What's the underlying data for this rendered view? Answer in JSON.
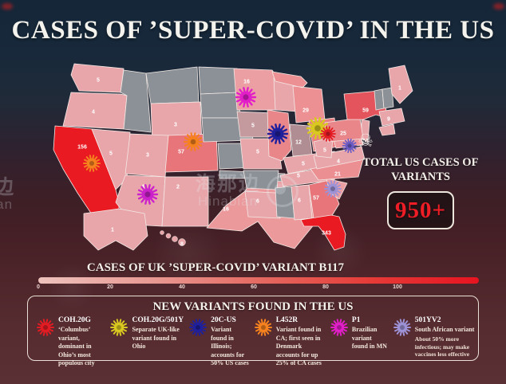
{
  "title": "CASES OF ’SUPER-COVID’ IN THE US",
  "watermark": {
    "cn": "海那边",
    "en": "Hinabian"
  },
  "total": {
    "line1": "TOTAL US CASES OF",
    "line2": "VARIANTS",
    "value": "950+",
    "value_color": "#ef1d25"
  },
  "scale": {
    "title": "CASES OF UK ’SUPER-COVID’ VARIANT B117",
    "ticks": [
      "0",
      "20",
      "40",
      "60",
      "80",
      "100"
    ],
    "gradient_start": "#eec2bd",
    "gradient_end": "#e71420"
  },
  "legend": {
    "title": "NEW VARIANTS FOUND IN THE US",
    "items": [
      {
        "name": "COH.20G",
        "color": "#e31c23",
        "desc": "‘Columbus’ variant, dominant in Ohio’s most populous city",
        "desc2": ""
      },
      {
        "name": "COH.20G/501Y",
        "color": "#d9c81f",
        "desc": "Separate UK-like variant found in Ohio",
        "desc2": ""
      },
      {
        "name": "20C-US",
        "color": "#20209d",
        "desc": "Variant found in Illinois; accounts for 50% US cases",
        "desc2": ""
      },
      {
        "name": "L452R",
        "color": "#f5821f",
        "desc": "Variant found in CA; first seen in Denmark accounts for up 25% of CA cases",
        "desc2": ""
      },
      {
        "name": "P1",
        "color": "#e21ec9",
        "desc": "Brazilian variant found in MN",
        "desc2": ""
      },
      {
        "name": "501YV2",
        "color": "#9d92d6",
        "desc": "South African variant",
        "desc2": "About 50% more infectious; may make vaccines less effective"
      }
    ]
  },
  "map": {
    "icons": [
      {
        "id": "ca-l452r",
        "variant": "L452R",
        "color": "#f5821f"
      },
      {
        "id": "co-l452r",
        "variant": "L452R",
        "color": "#f5821f"
      },
      {
        "id": "az-p1",
        "variant": "P1",
        "color": "#cb22cb"
      },
      {
        "id": "mn-p1",
        "variant": "P1",
        "color": "#e21ec9"
      },
      {
        "id": "il-20cus",
        "variant": "20C-US",
        "color": "#20209d"
      },
      {
        "id": "oh-coh20g501y",
        "variant": "COH.20G/501Y",
        "color": "#d9c81f"
      },
      {
        "id": "oh-coh20g",
        "variant": "COH.20G",
        "color": "#e31c23"
      },
      {
        "id": "md-501yv2",
        "variant": "501YV2",
        "color": "#6a5bc4"
      },
      {
        "id": "sc-501yv2",
        "variant": "501YV2",
        "color": "#9d92d6"
      }
    ],
    "skull": {
      "symbol": "☠",
      "meaning": "deaths marker near New Jersey / New York coast"
    }
  },
  "chart_data": {
    "type": "choropleth_map",
    "region": "United States",
    "title": "CASES OF UK ’SUPER-COVID’ VARIANT B117",
    "total_label": "TOTAL US CASES OF VARIANTS",
    "total_value": "950+",
    "scale_range": [
      0,
      100
    ],
    "states": [
      {
        "id": "WA",
        "name": "Washington",
        "value": 5,
        "fill": "#e9a6aa"
      },
      {
        "id": "OR",
        "name": "Oregon",
        "value": 4,
        "fill": "#e9a6aa"
      },
      {
        "id": "CA",
        "name": "California",
        "value": 156,
        "fill": "#ea1a22"
      },
      {
        "id": "NV",
        "name": "Nevada",
        "value": 5,
        "fill": "#e9a6aa"
      },
      {
        "id": "ID",
        "name": "Idaho",
        "value": null,
        "fill": "#8b9196"
      },
      {
        "id": "MT",
        "name": "Montana",
        "value": null,
        "fill": "#8b9196"
      },
      {
        "id": "WY",
        "name": "Wyoming",
        "value": 3,
        "fill": "#e9a6aa"
      },
      {
        "id": "UT",
        "name": "Utah",
        "value": 3,
        "fill": "#e9a6aa"
      },
      {
        "id": "CO",
        "name": "Colorado",
        "value": 57,
        "fill": "#e7757a"
      },
      {
        "id": "AZ",
        "name": "Arizona",
        "value": 4,
        "fill": "#e9a6aa"
      },
      {
        "id": "NM",
        "name": "New Mexico",
        "value": 2,
        "fill": "#e9a6aa"
      },
      {
        "id": "ND",
        "name": "North Dakota",
        "value": null,
        "fill": "#8b9196"
      },
      {
        "id": "SD",
        "name": "South Dakota",
        "value": null,
        "fill": "#8b9196"
      },
      {
        "id": "NE",
        "name": "Nebraska",
        "value": null,
        "fill": "#8b9196"
      },
      {
        "id": "KS",
        "name": "Kansas",
        "value": null,
        "fill": "#8b9196"
      },
      {
        "id": "OK",
        "name": "Oklahoma",
        "value": null,
        "fill": "#8b9196"
      },
      {
        "id": "TX",
        "name": "Texas",
        "value": 16,
        "fill": "#ec999c"
      },
      {
        "id": "MN",
        "name": "Minnesota",
        "value": 16,
        "fill": "#eb9fa3"
      },
      {
        "id": "IA",
        "name": "Iowa",
        "value": 5,
        "fill": "#c49a9e"
      },
      {
        "id": "MO",
        "name": "Missouri",
        "value": 5,
        "fill": "#e9a6aa"
      },
      {
        "id": "AR",
        "name": "Arkansas",
        "value": null,
        "fill": "#8b9196"
      },
      {
        "id": "LA",
        "name": "Louisiana",
        "value": 6,
        "fill": "#e9a6aa"
      },
      {
        "id": "WI",
        "name": "Wisconsin",
        "value": null,
        "fill": "#e9a6aa"
      },
      {
        "id": "IL",
        "name": "Illinois",
        "value": null,
        "fill": "#e9868a"
      },
      {
        "id": "MI",
        "name": "Michigan",
        "value": 29,
        "fill": "#ec9093"
      },
      {
        "id": "IN",
        "name": "Indiana",
        "value": 12,
        "fill": "#b08d92"
      },
      {
        "id": "OH",
        "name": "Ohio",
        "value": null,
        "fill": "#e87f83"
      },
      {
        "id": "KY",
        "name": "Kentucky",
        "value": 5,
        "fill": "#e9a6aa"
      },
      {
        "id": "TN",
        "name": "Tennessee",
        "value": 5,
        "fill": "#e9a6aa"
      },
      {
        "id": "MS",
        "name": "Mississippi",
        "value": null,
        "fill": "#8b9196"
      },
      {
        "id": "AL",
        "name": "Alabama",
        "value": 6,
        "fill": "#e9a6aa"
      },
      {
        "id": "GA",
        "name": "Georgia",
        "value": 57,
        "fill": "#e7757a"
      },
      {
        "id": "FL",
        "name": "Florida",
        "value": 343,
        "fill": "#ea1a22"
      },
      {
        "id": "SC",
        "name": "South Carolina",
        "value": null,
        "fill": "#eb9fa3"
      },
      {
        "id": "NC",
        "name": "North Carolina",
        "value": 21,
        "fill": "#ec8f92"
      },
      {
        "id": "VA",
        "name": "Virginia",
        "value": 4,
        "fill": "#e9a6aa"
      },
      {
        "id": "WV",
        "name": "West Virginia",
        "value": 5,
        "fill": "#e9a6aa"
      },
      {
        "id": "MD",
        "name": "Maryland",
        "value": null,
        "fill": "#ec989c"
      },
      {
        "id": "NJ",
        "name": "New Jersey",
        "value": null,
        "fill": "#e9a6aa"
      },
      {
        "id": "PA",
        "name": "Pennsylvania",
        "value": 25,
        "fill": "#e9868a"
      },
      {
        "id": "NY",
        "name": "New York",
        "value": 59,
        "fill": "#e4545c"
      },
      {
        "id": "VT",
        "name": "Vermont",
        "value": null,
        "fill": "#8b9196"
      },
      {
        "id": "NH",
        "name": "New Hampshire",
        "value": null,
        "fill": "#8b9196"
      },
      {
        "id": "ME",
        "name": "Maine",
        "value": 1,
        "fill": "#e9a6aa"
      },
      {
        "id": "MA",
        "name": "Massachusetts",
        "value": 9,
        "fill": "#e9a6aa"
      },
      {
        "id": "CT",
        "name": "Connecticut",
        "value": null,
        "fill": "#e9a6aa"
      },
      {
        "id": "AK",
        "name": "Alaska",
        "value": 1,
        "fill": "#e9a6aa"
      },
      {
        "id": "HI",
        "name": "Hawaii",
        "value": 8,
        "fill": "#e9a6aa"
      }
    ]
  }
}
